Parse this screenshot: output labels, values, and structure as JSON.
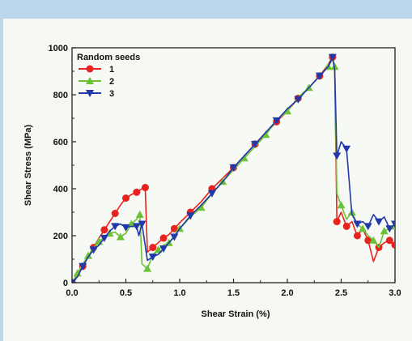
{
  "chart_data": {
    "type": "line",
    "xlabel": "Shear Strain (%)",
    "ylabel": "Shear Stress (MPa)",
    "xlim": [
      0,
      3.0
    ],
    "ylim": [
      0,
      1000
    ],
    "x_ticks": [
      "0.0",
      "0.5",
      "1.0",
      "1.5",
      "2.0",
      "2.5",
      "3.0"
    ],
    "y_ticks": [
      "0",
      "200",
      "400",
      "600",
      "800",
      "1000"
    ],
    "legend": {
      "title": "Random seeds",
      "position": "top-left"
    },
    "series": [
      {
        "name": "1",
        "color": "#e8231f",
        "marker": "circle",
        "x": [
          0.0,
          0.05,
          0.1,
          0.15,
          0.2,
          0.25,
          0.3,
          0.35,
          0.4,
          0.45,
          0.5,
          0.55,
          0.6,
          0.65,
          0.68,
          0.7,
          0.75,
          0.8,
          0.85,
          0.9,
          0.95,
          1.0,
          1.1,
          1.2,
          1.3,
          1.4,
          1.5,
          1.6,
          1.7,
          1.8,
          1.9,
          2.0,
          2.1,
          2.2,
          2.3,
          2.38,
          2.42,
          2.44,
          2.46,
          2.5,
          2.55,
          2.6,
          2.65,
          2.7,
          2.75,
          2.8,
          2.85,
          2.9,
          2.95,
          3.0
        ],
        "y": [
          0,
          30,
          70,
          110,
          150,
          190,
          225,
          260,
          295,
          330,
          360,
          375,
          385,
          400,
          405,
          130,
          150,
          170,
          190,
          205,
          230,
          255,
          300,
          345,
          400,
          445,
          490,
          540,
          590,
          635,
          685,
          730,
          785,
          830,
          880,
          930,
          960,
          900,
          260,
          300,
          240,
          260,
          200,
          230,
          180,
          90,
          150,
          170,
          180,
          160
        ]
      },
      {
        "name": "2",
        "color": "#6bc236",
        "marker": "triangle-up",
        "x": [
          0.0,
          0.05,
          0.1,
          0.15,
          0.2,
          0.25,
          0.3,
          0.35,
          0.4,
          0.45,
          0.5,
          0.55,
          0.6,
          0.63,
          0.65,
          0.7,
          0.75,
          0.8,
          0.85,
          0.9,
          0.95,
          1.0,
          1.1,
          1.2,
          1.3,
          1.4,
          1.5,
          1.6,
          1.7,
          1.8,
          1.9,
          2.0,
          2.1,
          2.2,
          2.3,
          2.38,
          2.42,
          2.44,
          2.46,
          2.5,
          2.55,
          2.6,
          2.65,
          2.7,
          2.75,
          2.8,
          2.85,
          2.9,
          2.95,
          3.0
        ],
        "y": [
          0,
          40,
          80,
          115,
          150,
          175,
          195,
          210,
          215,
          195,
          210,
          250,
          270,
          290,
          80,
          60,
          120,
          140,
          160,
          170,
          200,
          230,
          280,
          320,
          380,
          430,
          480,
          530,
          580,
          630,
          690,
          730,
          790,
          830,
          880,
          920,
          950,
          920,
          380,
          330,
          270,
          300,
          250,
          230,
          200,
          180,
          150,
          220,
          230,
          240
        ]
      },
      {
        "name": "3",
        "color": "#2138a8",
        "marker": "triangle-down",
        "x": [
          0.0,
          0.05,
          0.1,
          0.15,
          0.2,
          0.25,
          0.3,
          0.35,
          0.4,
          0.45,
          0.5,
          0.55,
          0.6,
          0.62,
          0.65,
          0.7,
          0.75,
          0.8,
          0.85,
          0.9,
          0.95,
          1.0,
          1.1,
          1.2,
          1.3,
          1.4,
          1.5,
          1.6,
          1.7,
          1.8,
          1.9,
          2.0,
          2.1,
          2.2,
          2.3,
          2.38,
          2.42,
          2.44,
          2.46,
          2.5,
          2.55,
          2.6,
          2.65,
          2.7,
          2.75,
          2.8,
          2.85,
          2.9,
          2.95,
          3.0
        ],
        "y": [
          0,
          25,
          70,
          110,
          140,
          160,
          190,
          220,
          240,
          250,
          235,
          240,
          240,
          200,
          250,
          95,
          110,
          120,
          145,
          170,
          195,
          230,
          285,
          330,
          380,
          430,
          490,
          540,
          590,
          640,
          690,
          740,
          780,
          830,
          880,
          920,
          960,
          910,
          540,
          600,
          570,
          290,
          250,
          260,
          240,
          290,
          260,
          280,
          230,
          250
        ]
      }
    ]
  }
}
